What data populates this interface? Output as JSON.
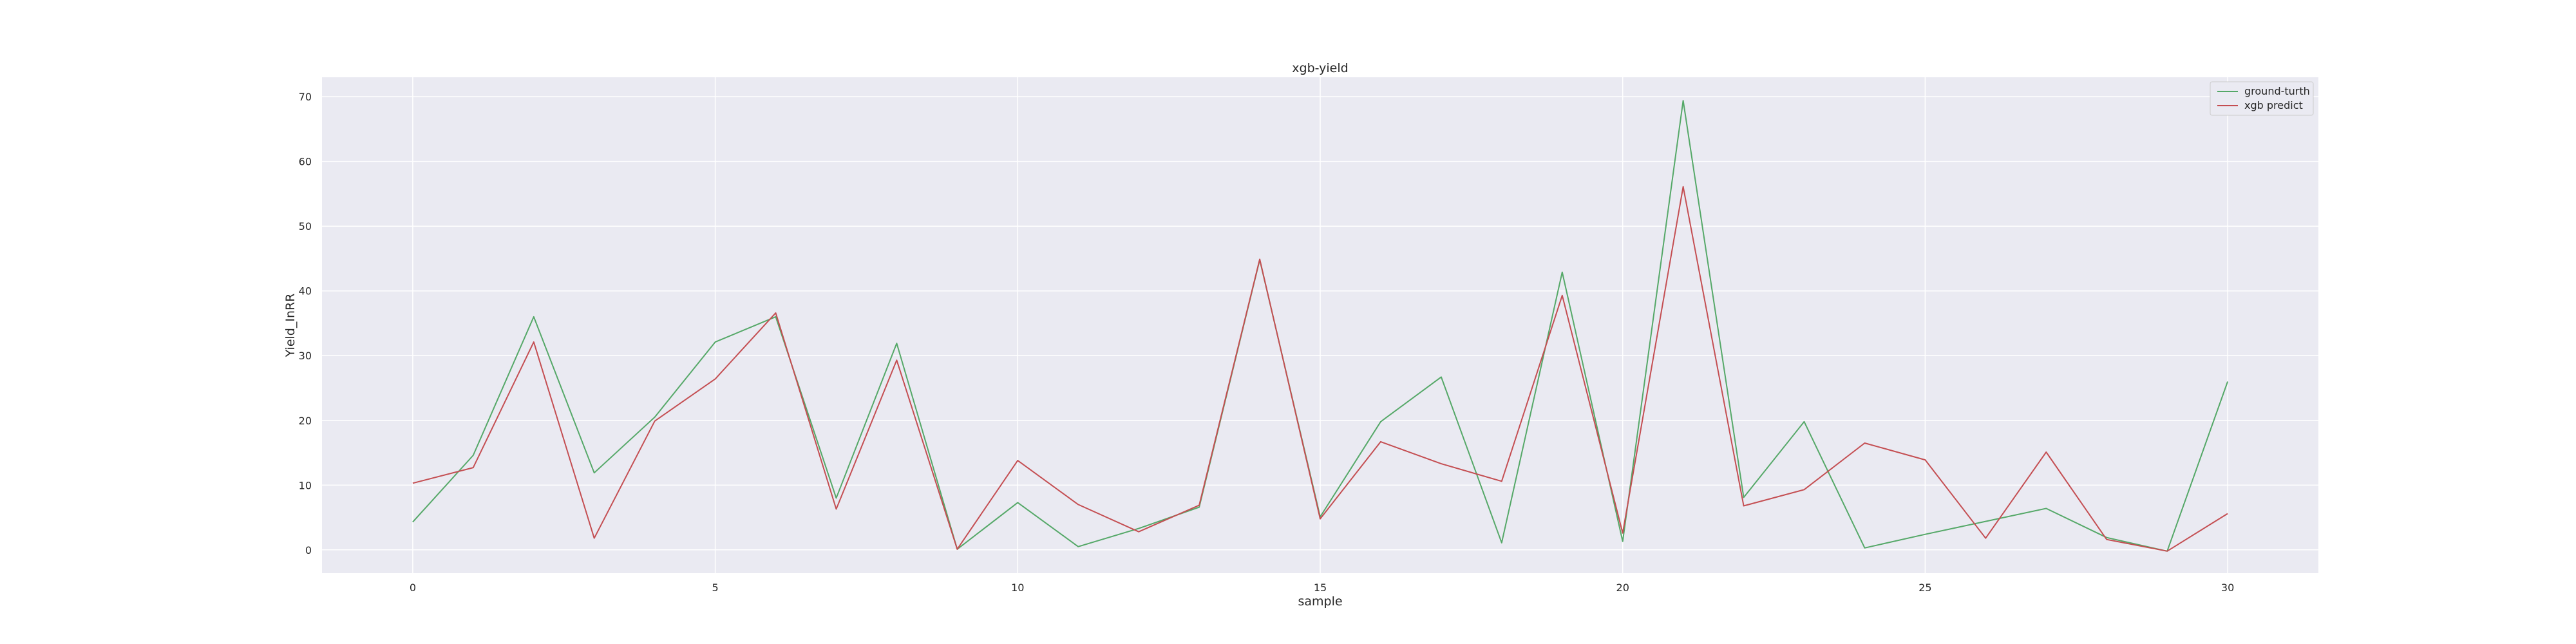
{
  "chart_data": {
    "type": "line",
    "title": "xgb-yield",
    "xlabel": "sample",
    "ylabel": "Yield_InRR",
    "xlim": [
      -1.5,
      31.5
    ],
    "ylim": [
      -3.6,
      73.0
    ],
    "xticks": [
      0,
      5,
      10,
      15,
      20,
      25,
      30
    ],
    "yticks": [
      0,
      10,
      20,
      30,
      40,
      50,
      60,
      70
    ],
    "grid": true,
    "legend_position": "top-right",
    "background_color": "#eaeaf2",
    "grid_color": "#ffffff",
    "x": [
      0,
      1,
      2,
      3,
      4,
      5,
      6,
      7,
      8,
      9,
      10,
      11,
      12,
      13,
      14,
      15,
      16,
      17,
      18,
      19,
      20,
      21,
      22,
      23,
      24,
      25,
      26,
      27,
      28,
      29,
      30
    ],
    "series": [
      {
        "name": "ground-turth",
        "color": "#55a868",
        "values": [
          4.3,
          14.6,
          36.0,
          11.9,
          20.5,
          32.1,
          36.0,
          8.0,
          31.9,
          0.1,
          7.3,
          0.5,
          3.3,
          6.6,
          44.8,
          5.1,
          19.8,
          26.7,
          1.1,
          42.9,
          1.3,
          69.4,
          8.1,
          19.8,
          0.3,
          2.4,
          4.4,
          6.4,
          1.9,
          -0.2,
          26.0
        ]
      },
      {
        "name": "xgb predict",
        "color": "#c44e52",
        "values": [
          10.3,
          12.7,
          32.1,
          1.8,
          19.9,
          26.4,
          36.6,
          6.3,
          29.3,
          0.1,
          13.8,
          7.0,
          2.8,
          6.9,
          44.9,
          4.8,
          16.7,
          13.3,
          10.6,
          39.3,
          2.6,
          56.1,
          6.8,
          9.3,
          16.5,
          13.9,
          1.8,
          15.1,
          1.6,
          -0.2,
          5.6
        ]
      }
    ]
  }
}
